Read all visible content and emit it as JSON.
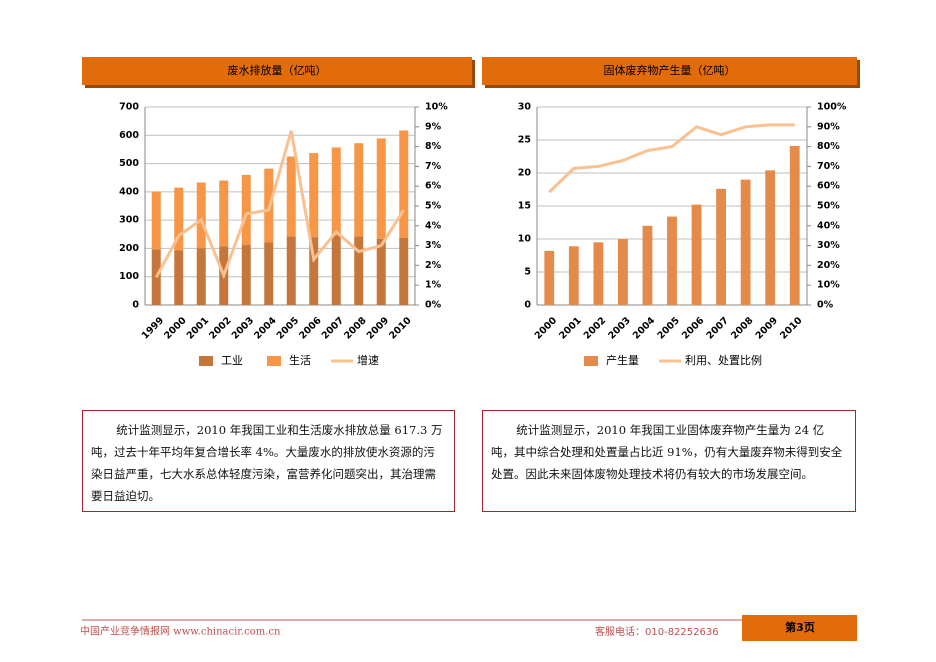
{
  "chart_data": [
    {
      "type": "bar",
      "title": "废水排放量（亿吨）",
      "stacked": true,
      "grid": true,
      "categories": [
        "1999",
        "2000",
        "2001",
        "2002",
        "2003",
        "2004",
        "2005",
        "2006",
        "2007",
        "2008",
        "2009",
        "2010"
      ],
      "series": [
        {
          "name": "工业",
          "color": "#c5773b",
          "values": [
            197,
            194,
            201,
            207,
            212,
            221,
            243,
            240,
            247,
            242,
            234,
            238
          ]
        },
        {
          "name": "生活",
          "color": "#f79646",
          "values": [
            204,
            221,
            232,
            233,
            248,
            261,
            282,
            297,
            310,
            330,
            355,
            379
          ]
        },
        {
          "name": "增速",
          "type": "line",
          "axis": "y2",
          "color": "#fac090",
          "values": [
            1.4,
            3.5,
            4.3,
            1.5,
            4.6,
            4.8,
            8.8,
            2.3,
            3.7,
            2.7,
            3.0,
            4.8
          ]
        }
      ],
      "ylim": [
        0,
        700
      ],
      "yticks": [
        0,
        100,
        200,
        300,
        400,
        500,
        600,
        700
      ],
      "y2lim": [
        0,
        10
      ],
      "y2ticks": [
        {
          "value": 0,
          "label": "0%"
        },
        {
          "value": 1,
          "label": "1%"
        },
        {
          "value": 2,
          "label": "2%"
        },
        {
          "value": 3,
          "label": "3%"
        },
        {
          "value": 4,
          "label": "4%"
        },
        {
          "value": 5,
          "label": "5%"
        },
        {
          "value": 6,
          "label": "6%"
        },
        {
          "value": 7,
          "label": "7%"
        },
        {
          "value": 8,
          "label": "8%"
        },
        {
          "value": 9,
          "label": "9%"
        },
        {
          "value": 10,
          "label": "10%"
        }
      ]
    },
    {
      "type": "bar",
      "title": "固体废弃物产生量（亿吨）",
      "stacked": false,
      "grid": true,
      "categories": [
        "2000",
        "2001",
        "2002",
        "2003",
        "2004",
        "2005",
        "2006",
        "2007",
        "2008",
        "2009",
        "2010"
      ],
      "series": [
        {
          "name": "产生量",
          "color": "#e48a4a",
          "values": [
            8.2,
            8.9,
            9.5,
            10.0,
            12.0,
            13.4,
            15.2,
            17.6,
            19.0,
            20.4,
            24.1
          ]
        },
        {
          "name": "利用、处置比例",
          "type": "line",
          "axis": "y2",
          "color": "#fac090",
          "values": [
            57,
            69,
            70,
            73,
            78,
            80,
            90,
            86,
            90,
            91,
            91
          ]
        }
      ],
      "ylim": [
        0,
        30
      ],
      "yticks": [
        0,
        5,
        10,
        15,
        20,
        25,
        30
      ],
      "y2lim": [
        0,
        100
      ],
      "y2ticks": [
        {
          "value": 0,
          "label": "0%"
        },
        {
          "value": 10,
          "label": "10%"
        },
        {
          "value": 20,
          "label": "20%"
        },
        {
          "value": 30,
          "label": "30%"
        },
        {
          "value": 40,
          "label": "40%"
        },
        {
          "value": 50,
          "label": "50%"
        },
        {
          "value": 60,
          "label": "60%"
        },
        {
          "value": 70,
          "label": "70%"
        },
        {
          "value": 80,
          "label": "80%"
        },
        {
          "value": 90,
          "label": "90%"
        },
        {
          "value": 100,
          "label": "100%"
        }
      ]
    }
  ],
  "paragraphs": [
    "统计监测显示，2010 年我国工业和生活废水排放总量 617.3 万吨，过去十年平均年复合增长率 4%。大量废水的排放使水资源的污染日益严重，七大水系总体轻度污染，富营养化问题突出，其治理需要日益迫切。",
    "统计监测显示，2010 年我国工业固体废弃物产生量为 24 亿吨，其中综合处理和处置量占比近 91%，仍有大量废弃物未得到安全处置。因此未来固体废物处理技术将仍有较大的市场发展空间。"
  ],
  "footer": {
    "site": "中国产业竞争情报网 www.chinacir.com.cn",
    "phone": "客服电话：010-82252636",
    "page": "第3页"
  }
}
